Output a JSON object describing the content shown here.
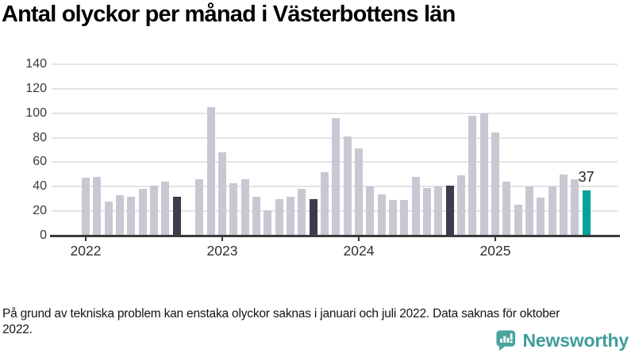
{
  "title": "Antal olyckor per månad i Västerbottens län",
  "footnote": "På grund av tekniska problem kan enstaka olyckor saknas i januari och juli 2022. Data saknas för oktober 2022.",
  "branding": {
    "logo_text": "Newsworthy",
    "logo_color": "#3e9d98",
    "logo_icon": "speech-bubble-bar-chart"
  },
  "colors": {
    "normal": "#c9c8d2",
    "dark": "#3c3c4e",
    "current": "#00a49c",
    "grid": "#e4e4e7",
    "axis": "#3a3a3a"
  },
  "chart_data": {
    "type": "bar",
    "title": "Antal olyckor per månad i Västerbottens län",
    "xlabel": "",
    "ylabel": "",
    "ylim": [
      0,
      140
    ],
    "yticks": [
      0,
      20,
      40,
      60,
      80,
      100,
      120,
      140
    ],
    "grid": true,
    "start_month": "2022-01",
    "year_ticks": [
      {
        "label": "2022",
        "month_index": 0
      },
      {
        "label": "2023",
        "month_index": 12
      },
      {
        "label": "2024",
        "month_index": 24
      },
      {
        "label": "2025",
        "month_index": 36
      }
    ],
    "annotation": {
      "text": "37",
      "month_index": 44
    },
    "points": [
      {
        "month": "2022-01",
        "value": 47,
        "role": "normal"
      },
      {
        "month": "2022-02",
        "value": 48,
        "role": "normal"
      },
      {
        "month": "2022-03",
        "value": 28,
        "role": "normal"
      },
      {
        "month": "2022-04",
        "value": 33,
        "role": "normal"
      },
      {
        "month": "2022-05",
        "value": 32,
        "role": "normal"
      },
      {
        "month": "2022-06",
        "value": 38,
        "role": "normal"
      },
      {
        "month": "2022-07",
        "value": 41,
        "role": "normal"
      },
      {
        "month": "2022-08",
        "value": 44,
        "role": "normal"
      },
      {
        "month": "2022-09",
        "value": 32,
        "role": "dark"
      },
      {
        "month": "2022-10",
        "value": null,
        "role": "missing"
      },
      {
        "month": "2022-11",
        "value": 46,
        "role": "normal"
      },
      {
        "month": "2022-12",
        "value": 105,
        "role": "normal"
      },
      {
        "month": "2023-01",
        "value": 68,
        "role": "normal"
      },
      {
        "month": "2023-02",
        "value": 43,
        "role": "normal"
      },
      {
        "month": "2023-03",
        "value": 46,
        "role": "normal"
      },
      {
        "month": "2023-04",
        "value": 32,
        "role": "normal"
      },
      {
        "month": "2023-05",
        "value": 21,
        "role": "normal"
      },
      {
        "month": "2023-06",
        "value": 30,
        "role": "normal"
      },
      {
        "month": "2023-07",
        "value": 32,
        "role": "normal"
      },
      {
        "month": "2023-08",
        "value": 38,
        "role": "normal"
      },
      {
        "month": "2023-09",
        "value": 30,
        "role": "dark"
      },
      {
        "month": "2023-10",
        "value": 52,
        "role": "normal"
      },
      {
        "month": "2023-11",
        "value": 96,
        "role": "normal"
      },
      {
        "month": "2023-12",
        "value": 81,
        "role": "normal"
      },
      {
        "month": "2024-01",
        "value": 71,
        "role": "normal"
      },
      {
        "month": "2024-02",
        "value": 40,
        "role": "normal"
      },
      {
        "month": "2024-03",
        "value": 34,
        "role": "normal"
      },
      {
        "month": "2024-04",
        "value": 29,
        "role": "normal"
      },
      {
        "month": "2024-05",
        "value": 29,
        "role": "normal"
      },
      {
        "month": "2024-06",
        "value": 48,
        "role": "normal"
      },
      {
        "month": "2024-07",
        "value": 39,
        "role": "normal"
      },
      {
        "month": "2024-08",
        "value": 40,
        "role": "normal"
      },
      {
        "month": "2024-09",
        "value": 41,
        "role": "dark"
      },
      {
        "month": "2024-10",
        "value": 49,
        "role": "normal"
      },
      {
        "month": "2024-11",
        "value": 98,
        "role": "normal"
      },
      {
        "month": "2024-12",
        "value": 100,
        "role": "normal"
      },
      {
        "month": "2025-01",
        "value": 84,
        "role": "normal"
      },
      {
        "month": "2025-02",
        "value": 44,
        "role": "normal"
      },
      {
        "month": "2025-03",
        "value": 25,
        "role": "normal"
      },
      {
        "month": "2025-04",
        "value": 40,
        "role": "normal"
      },
      {
        "month": "2025-05",
        "value": 31,
        "role": "normal"
      },
      {
        "month": "2025-06",
        "value": 40,
        "role": "normal"
      },
      {
        "month": "2025-07",
        "value": 50,
        "role": "normal"
      },
      {
        "month": "2025-08",
        "value": 46,
        "role": "normal"
      },
      {
        "month": "2025-09",
        "value": 37,
        "role": "current"
      }
    ]
  }
}
